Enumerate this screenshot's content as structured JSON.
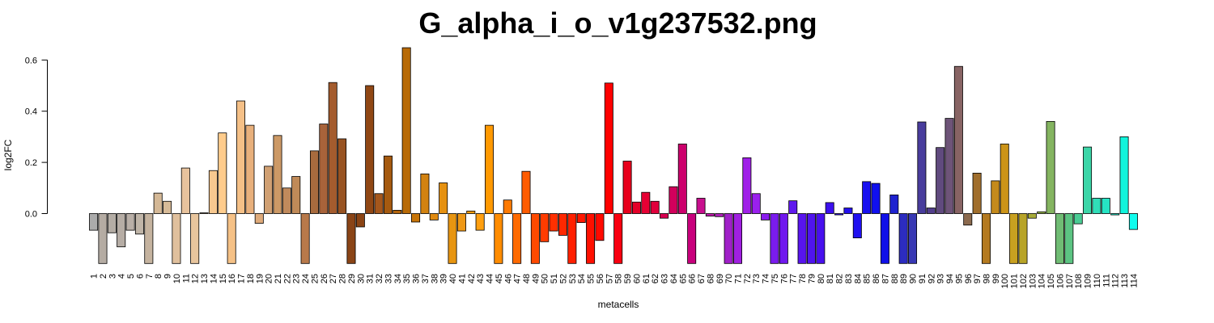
{
  "chart_data": {
    "type": "bar",
    "title": "G_alpha_i_o_v1g237532.png",
    "xlabel": "metacells",
    "ylabel": "log2FC",
    "ylim": [
      -0.2,
      0.65
    ],
    "yticks": [
      "0.0",
      "0.2",
      "0.4",
      "0.6"
    ],
    "grid": false,
    "legend": "none",
    "categories": [
      "1",
      "2",
      "3",
      "4",
      "5",
      "6",
      "7",
      "8",
      "9",
      "10",
      "11",
      "12",
      "13",
      "14",
      "15",
      "16",
      "17",
      "18",
      "19",
      "20",
      "21",
      "22",
      "23",
      "24",
      "25",
      "26",
      "27",
      "28",
      "29",
      "30",
      "31",
      "32",
      "33",
      "34",
      "35",
      "36",
      "37",
      "38",
      "39",
      "40",
      "41",
      "42",
      "43",
      "44",
      "45",
      "46",
      "47",
      "48",
      "49",
      "50",
      "51",
      "52",
      "53",
      "54",
      "55",
      "56",
      "57",
      "58",
      "59",
      "60",
      "61",
      "62",
      "63",
      "64",
      "65",
      "66",
      "67",
      "68",
      "69",
      "70",
      "71",
      "72",
      "73",
      "74",
      "75",
      "76",
      "77",
      "78",
      "79",
      "80",
      "81",
      "82",
      "83",
      "84",
      "85",
      "86",
      "87",
      "88",
      "89",
      "90",
      "91",
      "92",
      "93",
      "94",
      "95",
      "96",
      "97",
      "98",
      "99",
      "100",
      "101",
      "102",
      "103",
      "104",
      "105",
      "106",
      "107",
      "108",
      "109",
      "110",
      "111",
      "112",
      "113",
      "114"
    ],
    "values": [
      -0.065,
      -0.195,
      -0.075,
      -0.13,
      -0.065,
      -0.08,
      -0.195,
      0.08,
      0.048,
      -0.195,
      0.178,
      -0.195,
      0.003,
      0.168,
      0.315,
      -0.195,
      0.44,
      0.345,
      -0.038,
      0.185,
      0.305,
      0.1,
      0.145,
      -0.195,
      0.245,
      0.35,
      0.512,
      0.292,
      -0.195,
      -0.052,
      0.5,
      0.078,
      0.225,
      0.013,
      0.648,
      -0.033,
      0.155,
      -0.025,
      0.12,
      -0.195,
      -0.068,
      0.01,
      -0.065,
      0.345,
      -0.195,
      0.053,
      -0.195,
      0.165,
      -0.195,
      -0.11,
      -0.068,
      -0.085,
      -0.195,
      -0.035,
      -0.195,
      -0.105,
      0.51,
      -0.195,
      0.205,
      0.045,
      0.083,
      0.048,
      -0.018,
      0.105,
      0.272,
      -0.195,
      0.06,
      -0.01,
      -0.012,
      -0.195,
      -0.195,
      0.218,
      0.078,
      -0.025,
      -0.195,
      -0.195,
      0.05,
      -0.195,
      -0.195,
      -0.195,
      0.043,
      -0.005,
      0.022,
      -0.095,
      0.125,
      0.118,
      -0.195,
      0.073,
      -0.195,
      -0.195,
      0.358,
      0.022,
      0.258,
      0.372,
      0.575,
      -0.045,
      0.158,
      -0.195,
      0.128,
      0.272,
      -0.195,
      -0.195,
      -0.018,
      0.007,
      0.36,
      -0.195,
      -0.195,
      -0.04,
      0.26,
      0.06,
      0.06,
      -0.005,
      0.3,
      -0.062
    ],
    "colors": [
      "#ababab",
      "#b5aca3",
      "#b4ada5",
      "#b6ada5",
      "#b9afa7",
      "#c0b5a8",
      "#c5b39f",
      "#d4b896",
      "#d7bb98",
      "#e0c09d",
      "#e8c39d",
      "#e8c59d",
      "#eec69e",
      "#f7c88f",
      "#ffcc8c",
      "#f5c186",
      "#f5c087",
      "#e8b07c",
      "#deaa7a",
      "#d0a073",
      "#cc9966",
      "#c08a5c",
      "#c08a58",
      "#b8794a",
      "#a86b3e",
      "#a8633a",
      "#a45c2e",
      "#985322",
      "#8a4416",
      "#8b4414",
      "#904714",
      "#a5571c",
      "#a55a10",
      "#b4650c",
      "#b86a06",
      "#c87508",
      "#d28210",
      "#e08a10",
      "#e69110",
      "#e79511",
      "#ee9816",
      "#f59c10",
      "#ff9f10",
      "#ff9900",
      "#ff8c00",
      "#ff7a00",
      "#ff6a00",
      "#ff5b00",
      "#ff4a00",
      "#ff3c00",
      "#ff3000",
      "#ff2800",
      "#ff2000",
      "#ff1800",
      "#ff1000",
      "#ff0a00",
      "#ff0000",
      "#f80010",
      "#e8001c",
      "#e40028",
      "#e60034",
      "#e0003c",
      "#d80050",
      "#d2005c",
      "#cc006c",
      "#c8007c",
      "#c8108e",
      "#be1aa8",
      "#b020b8",
      "#a020c8",
      "#a020e0",
      "#a020e8",
      "#9a20ee",
      "#8a1cee",
      "#7a1cee",
      "#7018ee",
      "#6018ee",
      "#5814ee",
      "#5014ee",
      "#4810ee",
      "#3c10ee",
      "#2e10ee",
      "#2410ee",
      "#2010f0",
      "#1810f0",
      "#1010ee",
      "#1010e8",
      "#1e22d0",
      "#2c2cc0",
      "#3838b4",
      "#483c9c",
      "#523e8c",
      "#604a7e",
      "#6e5478",
      "#886464",
      "#8c6a4e",
      "#a06e2c",
      "#b47a20",
      "#c48a1c",
      "#cc9418",
      "#c8a020",
      "#b8a428",
      "#a8ac38",
      "#94b048",
      "#84b460",
      "#70bc74",
      "#5cc482",
      "#4acc94",
      "#3cd6a8",
      "#30ddb8",
      "#26e4c4",
      "#1eeecc",
      "#10f4dc",
      "#10fcee"
    ]
  }
}
